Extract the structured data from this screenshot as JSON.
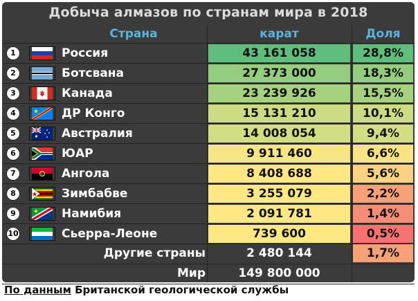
{
  "title": "Добыча алмазов по странам мира в 2018",
  "headers": {
    "country": "Страна",
    "carat": "карат",
    "share": "Доля"
  },
  "rows": [
    {
      "num": "1",
      "flag": "russia-flag-icon",
      "country": "Россия",
      "carat": "43 161 058",
      "share": "28,8%",
      "carat_color": "#5fbe7b",
      "share_color": "#5fbe7b"
    },
    {
      "num": "2",
      "flag": "botswana-flag-icon",
      "country": "Ботсвана",
      "carat": "27 373 000",
      "share": "18,3%",
      "carat_color": "#95cd7f",
      "share_color": "#95cd7f"
    },
    {
      "num": "3",
      "flag": "canada-flag-icon",
      "country": "Канада",
      "carat": "23 239 926",
      "share": "15,5%",
      "carat_color": "#a6d27f",
      "share_color": "#a6d27f"
    },
    {
      "num": "4",
      "flag": "dr-congo-flag-icon",
      "country": "ДР Конго",
      "carat": "15 131 210",
      "share": "10,1%",
      "carat_color": "#cddc82",
      "share_color": "#cddc82"
    },
    {
      "num": "5",
      "flag": "australia-flag-icon",
      "country": "Австралия",
      "carat": "14 008 054",
      "share": "9,4%",
      "carat_color": "#d3de82",
      "share_color": "#d3de82"
    },
    {
      "num": "6",
      "flag": "south-africa-flag-icon",
      "country": "ЮАР",
      "carat": "9 911 460",
      "share": "6,6%",
      "carat_color": "#f6e784",
      "share_color": "#f9e484"
    },
    {
      "num": "7",
      "flag": "angola-flag-icon",
      "country": "Ангола",
      "carat": "8 408 688",
      "share": "5,6%",
      "carat_color": "#fee884",
      "share_color": "#fbd27f"
    },
    {
      "num": "8",
      "flag": "zimbabwe-flag-icon",
      "country": "Зимбабве",
      "carat": "3 255 079",
      "share": "2,2%",
      "carat_color": "#fee884",
      "share_color": "#f8a077"
    },
    {
      "num": "9",
      "flag": "namibia-flag-icon",
      "country": "Намибия",
      "carat": "2 091 781",
      "share": "1,4%",
      "carat_color": "#fee884",
      "share_color": "#f78d74"
    },
    {
      "num": "10",
      "flag": "sierra-leone-flag-icon",
      "country": "Сьерра-Леоне",
      "carat": "739 600",
      "share": "0,5%",
      "carat_color": "#fee884",
      "share_color": "#f6736e"
    }
  ],
  "others": {
    "label": "Другие страны",
    "carat": "2 480 144",
    "share": "1,7%",
    "share_color": "#f8a077"
  },
  "world": {
    "label": "Мир",
    "carat": "149 800 000"
  },
  "source": {
    "underlined": "По данным",
    "rest": " Британской геологической службы"
  },
  "chart_data": {
    "type": "table",
    "title": "Добыча алмазов по странам мира в 2018",
    "columns": [
      "Страна",
      "карат",
      "Доля"
    ],
    "rows": [
      [
        "Россия",
        43161058,
        28.8
      ],
      [
        "Ботсвана",
        27373000,
        18.3
      ],
      [
        "Канада",
        23239926,
        15.5
      ],
      [
        "ДР Конго",
        15131210,
        10.1
      ],
      [
        "Австралия",
        14008054,
        9.4
      ],
      [
        "ЮАР",
        9911460,
        6.6
      ],
      [
        "Ангола",
        8408688,
        5.6
      ],
      [
        "Зимбабве",
        3255079,
        2.2
      ],
      [
        "Намибия",
        2091781,
        1.4
      ],
      [
        "Сьерра-Леоне",
        739600,
        0.5
      ],
      [
        "Другие страны",
        2480144,
        1.7
      ],
      [
        "Мир",
        149800000,
        null
      ]
    ]
  }
}
